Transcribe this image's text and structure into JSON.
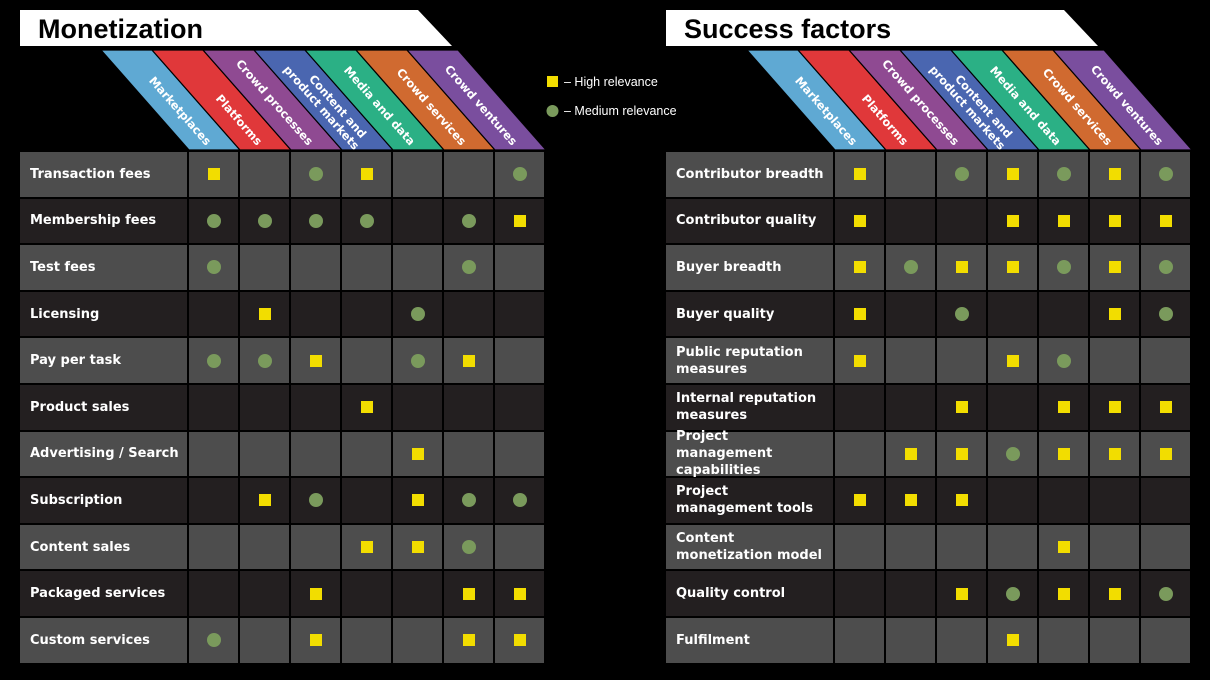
{
  "colors": {
    "columns": [
      "#5fa9d3",
      "#e0383a",
      "#8f4a92",
      "#4a66b0",
      "#2bb085",
      "#d06a30",
      "#7a4e9e"
    ],
    "high": "#f2dd00",
    "medium": "#7a9a5c",
    "row_light": "#4d4d4d",
    "row_dark": "#231f20"
  },
  "columns": [
    {
      "lines": [
        "Marketplaces"
      ]
    },
    {
      "lines": [
        "Platforms"
      ]
    },
    {
      "lines": [
        "Crowd processes"
      ]
    },
    {
      "lines": [
        "Content and",
        "product markets"
      ]
    },
    {
      "lines": [
        "Media and data"
      ]
    },
    {
      "lines": [
        "Crowd services"
      ]
    },
    {
      "lines": [
        "Crowd ventures"
      ]
    }
  ],
  "legend": {
    "high": "– High relevance",
    "medium": "– Medium relevance"
  },
  "tables": [
    {
      "title": "Monetization",
      "rows": [
        {
          "label": "Transaction fees",
          "values": [
            "H",
            "",
            "M",
            "H",
            "",
            "",
            "M"
          ]
        },
        {
          "label": "Membership fees",
          "values": [
            "M",
            "M",
            "M",
            "M",
            "",
            "M",
            "H"
          ]
        },
        {
          "label": "Test fees",
          "values": [
            "M",
            "",
            "",
            "",
            "",
            "M",
            ""
          ]
        },
        {
          "label": "Licensing",
          "values": [
            "",
            "H",
            "",
            "",
            "M",
            "",
            ""
          ]
        },
        {
          "label": "Pay per task",
          "values": [
            "M",
            "M",
            "H",
            "",
            "M",
            "H",
            ""
          ]
        },
        {
          "label": "Product sales",
          "values": [
            "",
            "",
            "",
            "H",
            "",
            "",
            ""
          ]
        },
        {
          "label": "Advertising / Search",
          "values": [
            "",
            "",
            "",
            "",
            "H",
            "",
            ""
          ]
        },
        {
          "label": "Subscription",
          "values": [
            "",
            "H",
            "M",
            "",
            "H",
            "M",
            "M"
          ]
        },
        {
          "label": "Content sales",
          "values": [
            "",
            "",
            "",
            "H",
            "H",
            "M",
            ""
          ]
        },
        {
          "label": "Packaged services",
          "values": [
            "",
            "",
            "H",
            "",
            "",
            "H",
            "H"
          ]
        },
        {
          "label": "Custom services",
          "values": [
            "M",
            "",
            "H",
            "",
            "",
            "H",
            "H"
          ]
        }
      ]
    },
    {
      "title": "Success factors",
      "rows": [
        {
          "label": "Contributor breadth",
          "values": [
            "H",
            "",
            "M",
            "H",
            "M",
            "H",
            "M"
          ]
        },
        {
          "label": "Contributor quality",
          "values": [
            "H",
            "",
            "",
            "H",
            "H",
            "H",
            "H"
          ]
        },
        {
          "label": "Buyer breadth",
          "values": [
            "H",
            "M",
            "H",
            "H",
            "M",
            "H",
            "M"
          ]
        },
        {
          "label": "Buyer quality",
          "values": [
            "H",
            "",
            "M",
            "",
            "",
            "H",
            "M"
          ]
        },
        {
          "label": "Public reputation measures",
          "values": [
            "H",
            "",
            "",
            "H",
            "M",
            "",
            ""
          ]
        },
        {
          "label": "Internal reputation measures",
          "values": [
            "",
            "",
            "H",
            "",
            "H",
            "H",
            "H"
          ]
        },
        {
          "label": "Project management capabilities",
          "values": [
            "",
            "H",
            "H",
            "M",
            "H",
            "H",
            "H"
          ]
        },
        {
          "label": "Project management tools",
          "values": [
            "H",
            "H",
            "H",
            "",
            "",
            "",
            ""
          ]
        },
        {
          "label": "Content monetization model",
          "values": [
            "",
            "",
            "",
            "",
            "H",
            "",
            ""
          ]
        },
        {
          "label": "Quality control",
          "values": [
            "",
            "",
            "H",
            "M",
            "H",
            "H",
            "M"
          ]
        },
        {
          "label": "Fulfilment",
          "values": [
            "",
            "",
            "",
            "H",
            "",
            "",
            ""
          ]
        }
      ]
    }
  ]
}
